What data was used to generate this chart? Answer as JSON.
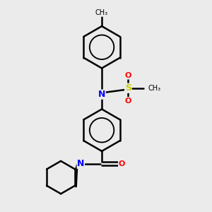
{
  "bg_color": "#ebebeb",
  "bond_color": "#000000",
  "N_color": "#0000ff",
  "S_color": "#cccc00",
  "O_color": "#ff0000",
  "line_width": 1.8,
  "figsize": [
    3.0,
    3.0
  ],
  "dpi": 100,
  "xlim": [
    0,
    10
  ],
  "ylim": [
    0,
    10
  ]
}
